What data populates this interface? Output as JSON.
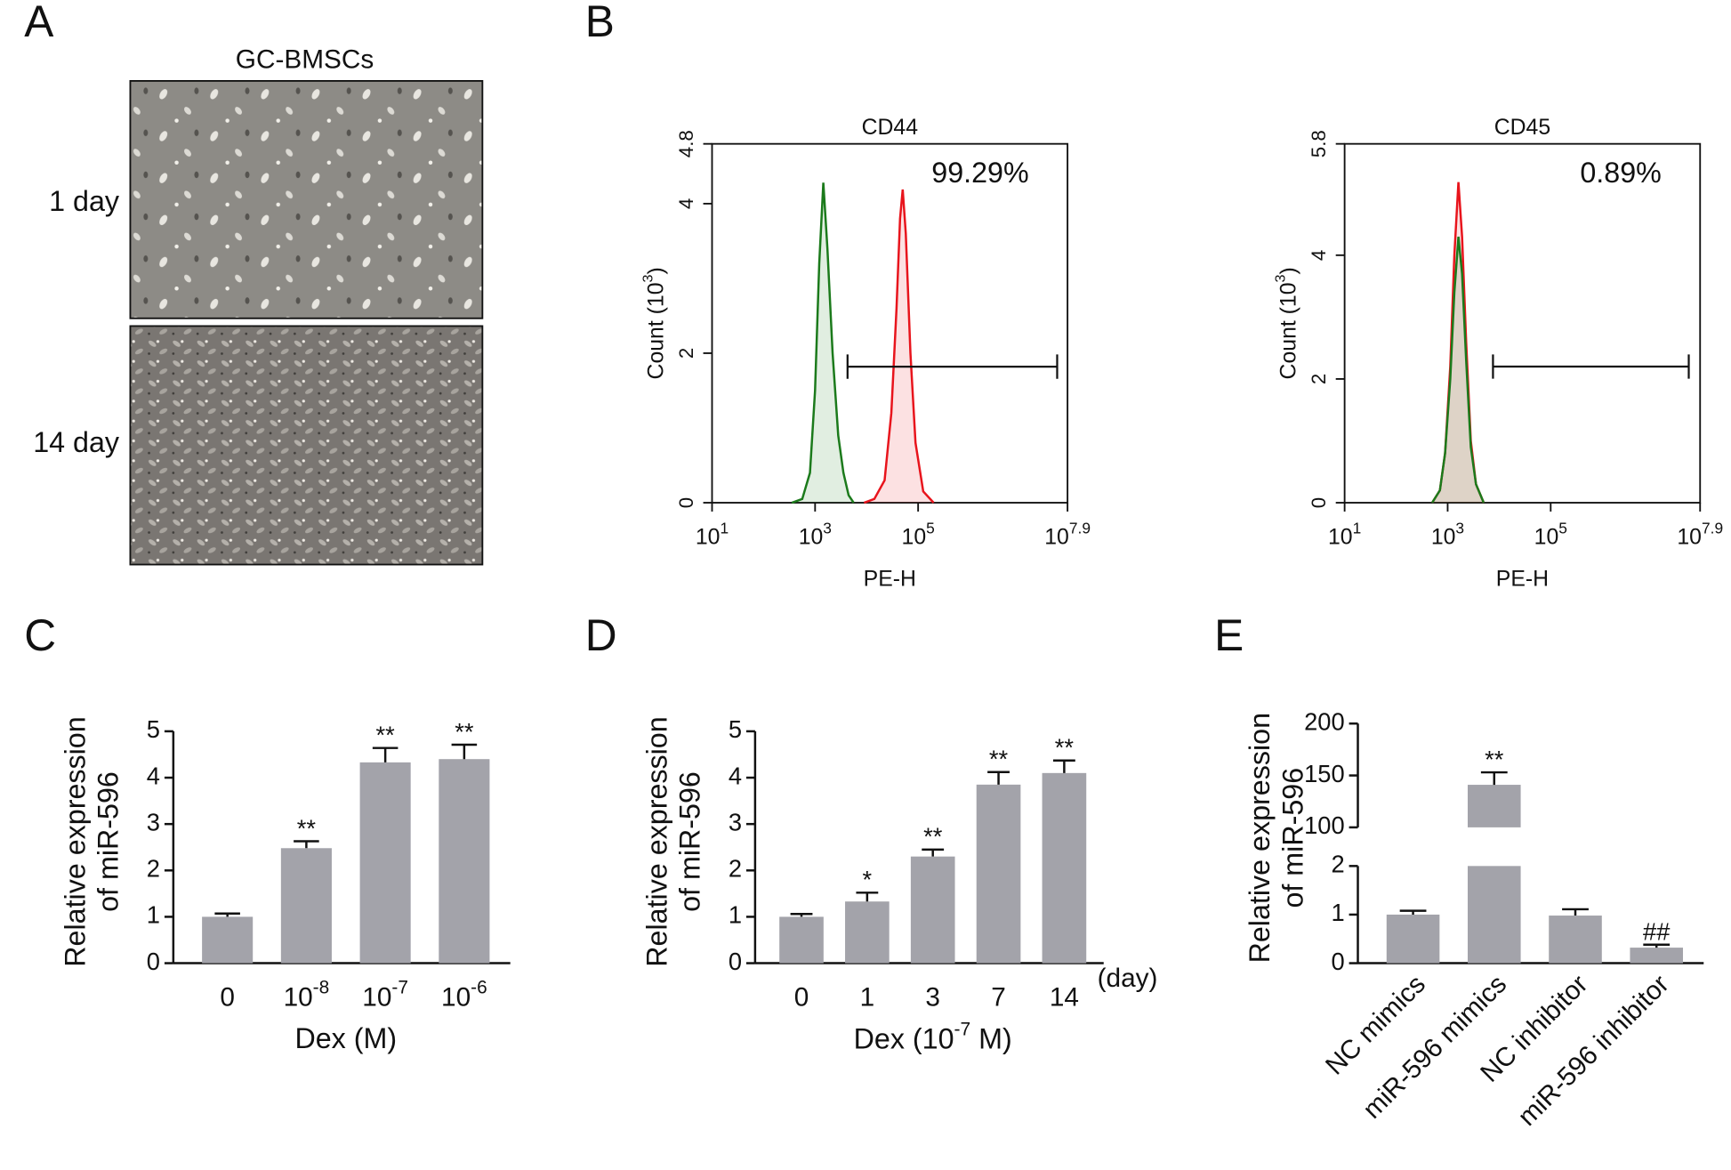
{
  "panel_labels": [
    "A",
    "B",
    "C",
    "D",
    "E"
  ],
  "micrographs": {
    "title": "GC-BMSCs",
    "rows": [
      "1 day",
      "14 day"
    ]
  },
  "chart_data": [
    {
      "type": "line",
      "title": "CD44",
      "xlabel": "PE-H",
      "ylabel": [
        "Count  (10",
        "3",
        ")"
      ],
      "xscale": "log",
      "xlim": [
        10,
        79432823
      ],
      "xticks": [
        {
          "value": 10,
          "label": "10",
          "sup": "1"
        },
        {
          "value": 1000,
          "label": "10",
          "sup": "3"
        },
        {
          "value": 100000,
          "label": "10",
          "sup": "5"
        },
        {
          "value": 79432823,
          "label": "10",
          "sup": "7.9"
        }
      ],
      "ylim": [
        0,
        4.8
      ],
      "yticks": [
        0,
        2,
        4,
        4.8
      ],
      "series": [
        {
          "color": "#1b7a1b",
          "x": [
            355,
            562,
            794,
            1000,
            1202,
            1445,
            1738,
            2188,
            2818,
            3548,
            4467,
            5623
          ],
          "values": [
            0,
            0.05,
            0.4,
            1.5,
            3.2,
            4.28,
            3.4,
            2.0,
            0.9,
            0.4,
            0.1,
            0
          ]
        },
        {
          "color": "#e8141c",
          "x": [
            8913,
            14125,
            22387,
            30200,
            38019,
            44668,
            50119,
            57544,
            70795,
            89125,
            125893,
            199526
          ],
          "values": [
            0,
            0.05,
            0.3,
            1.2,
            2.6,
            3.8,
            4.19,
            3.6,
            2.0,
            0.8,
            0.15,
            0
          ]
        }
      ],
      "gate": {
        "x": [
          4266,
          50000000
        ],
        "y": 1.82
      },
      "annotation": "99.29%"
    },
    {
      "type": "line",
      "title": "CD45",
      "xlabel": "PE-H",
      "ylabel": [
        "Count  (10",
        "3",
        ")"
      ],
      "xscale": "log",
      "xlim": [
        10,
        79432823
      ],
      "xticks": [
        {
          "value": 10,
          "label": "10",
          "sup": "1"
        },
        {
          "value": 1000,
          "label": "10",
          "sup": "3"
        },
        {
          "value": 100000,
          "label": "10",
          "sup": "5"
        },
        {
          "value": 79432823,
          "label": "10",
          "sup": "7.9"
        }
      ],
      "ylim": [
        0,
        5.8
      ],
      "yticks": [
        0,
        2,
        4,
        5.8
      ],
      "series": [
        {
          "color": "#e8141c",
          "x": [
            501,
            708,
            891,
            1122,
            1349,
            1622,
            1905,
            2291,
            2818,
            3548,
            5012
          ],
          "values": [
            0,
            0.2,
            0.8,
            2.2,
            4.0,
            5.18,
            4.3,
            2.6,
            1.0,
            0.3,
            0
          ]
        },
        {
          "color": "#1b7a1b",
          "x": [
            501,
            708,
            891,
            1122,
            1349,
            1622,
            1905,
            2291,
            2818,
            3548,
            5012
          ],
          "values": [
            0,
            0.2,
            0.8,
            2.0,
            3.4,
            4.3,
            3.7,
            2.3,
            0.9,
            0.3,
            0
          ]
        }
      ],
      "gate": {
        "x": [
          7586,
          47863009
        ],
        "y": 2.2
      },
      "annotation": "0.89%"
    },
    {
      "type": "bar",
      "categories": [
        "0",
        "10",
        "10",
        "10"
      ],
      "category_sup": [
        null,
        "-8",
        "-7",
        "-6"
      ],
      "values": [
        1.0,
        2.48,
        4.33,
        4.4
      ],
      "errors": [
        0.07,
        0.15,
        0.31,
        0.31
      ],
      "annotations": [
        null,
        "**",
        "**",
        "**"
      ],
      "color": "#a3a3aa",
      "xlabel": "Dex (M)",
      "ylabel": [
        "Relative expression",
        "of miR-596"
      ],
      "ylim": [
        0,
        5
      ],
      "yticks": [
        0,
        1,
        2,
        3,
        4,
        5
      ]
    },
    {
      "type": "bar",
      "categories": [
        "0",
        "1",
        "3",
        "7",
        "14"
      ],
      "xunit": "(day)",
      "values": [
        1.0,
        1.33,
        2.3,
        3.85,
        4.1
      ],
      "errors": [
        0.06,
        0.19,
        0.15,
        0.27,
        0.27
      ],
      "annotations": [
        null,
        "*",
        "**",
        "**",
        "**"
      ],
      "color": "#a3a3aa",
      "xlabel": [
        "Dex (10",
        "-7",
        " M)"
      ],
      "ylabel": [
        "Relative expression",
        "of miR-596"
      ],
      "ylim": [
        0,
        5
      ],
      "yticks": [
        0,
        1,
        2,
        3,
        4,
        5
      ]
    },
    {
      "type": "bar",
      "categories": [
        "NC mimics",
        "miR-596 mimics",
        "NC inhibitor",
        "miR-596 inhibitor"
      ],
      "xtick_rotation": -45,
      "values": [
        1.0,
        141,
        0.98,
        0.32
      ],
      "errors": [
        0.08,
        12,
        0.13,
        0.06
      ],
      "annotations": [
        null,
        "**",
        null,
        "##"
      ],
      "color": "#a3a3aa",
      "ylabel": [
        "Relative expression",
        "of miR-596"
      ],
      "ylim": [
        0,
        200
      ],
      "ybreak": [
        2,
        100
      ],
      "yticks": [
        0,
        1,
        2,
        100,
        150,
        200
      ]
    }
  ]
}
